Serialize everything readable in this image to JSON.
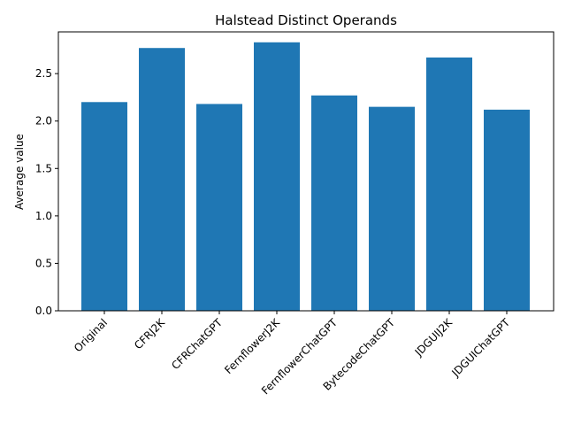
{
  "chart_data": {
    "type": "bar",
    "title": "Halstead Distinct Operands",
    "xlabel": "",
    "ylabel": "Average value",
    "categories": [
      "Original",
      "CFRJ2K",
      "CFRChatGPT",
      "FernflowerJ2K",
      "FernflowerChatGPT",
      "BytecodeChatGPT",
      "JDGUIJ2K",
      "JDGUIChatGPT"
    ],
    "values": [
      2.2,
      2.77,
      2.18,
      2.83,
      2.27,
      2.15,
      2.67,
      2.12
    ],
    "ylim": [
      0,
      2.94
    ],
    "yticks": [
      "0.0",
      "0.5",
      "1.0",
      "1.5",
      "2.0",
      "2.5"
    ],
    "grid": false,
    "bar_color": "#1f77b4"
  }
}
